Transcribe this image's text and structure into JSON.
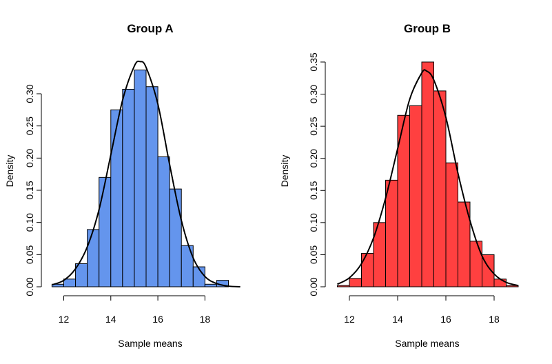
{
  "chart_data": [
    {
      "type": "bar",
      "title": "Group A",
      "xlabel": "Sample means",
      "ylabel": "Density",
      "xlim": [
        11.4,
        19.6
      ],
      "ylim": [
        0,
        0.36
      ],
      "x_ticks": [
        "12",
        "14",
        "16",
        "18"
      ],
      "y_ticks": [
        "0.00",
        "0.05",
        "0.10",
        "0.15",
        "0.20",
        "0.25",
        "0.30"
      ],
      "bin_edges": [
        11.5,
        12.0,
        12.5,
        13.0,
        13.5,
        14.0,
        14.5,
        15.0,
        15.5,
        16.0,
        16.5,
        17.0,
        17.5,
        18.0,
        18.5,
        19.0
      ],
      "values": [
        0.004,
        0.012,
        0.036,
        0.089,
        0.17,
        0.275,
        0.307,
        0.337,
        0.311,
        0.202,
        0.152,
        0.064,
        0.031,
        0.004,
        0.01
      ],
      "bar_color": "#6495ED",
      "curve": {
        "x": [
          11.5,
          12.0,
          12.5,
          13.0,
          13.5,
          14.0,
          14.5,
          15.0,
          15.25,
          15.5,
          16.0,
          16.5,
          17.0,
          17.5,
          18.0,
          18.5,
          19.0,
          19.5
        ],
        "y": [
          0.003,
          0.01,
          0.028,
          0.062,
          0.12,
          0.205,
          0.29,
          0.343,
          0.35,
          0.341,
          0.284,
          0.19,
          0.103,
          0.045,
          0.016,
          0.005,
          0.001,
          0.0
        ]
      }
    },
    {
      "type": "bar",
      "title": "Group B",
      "xlabel": "Sample means",
      "ylabel": "Density",
      "xlim": [
        11.4,
        19.0
      ],
      "ylim": [
        0,
        0.365
      ],
      "x_ticks": [
        "12",
        "14",
        "16",
        "18"
      ],
      "y_ticks": [
        "0.00",
        "0.05",
        "0.10",
        "0.15",
        "0.20",
        "0.25",
        "0.30",
        "0.35"
      ],
      "bin_edges": [
        11.5,
        12.0,
        12.5,
        13.0,
        13.5,
        14.0,
        14.5,
        15.0,
        15.5,
        16.0,
        16.5,
        17.0,
        17.5,
        18.0,
        18.5,
        19.0
      ],
      "values": [
        0.002,
        0.013,
        0.052,
        0.1,
        0.166,
        0.267,
        0.282,
        0.35,
        0.305,
        0.193,
        0.132,
        0.071,
        0.05,
        0.012,
        0.002
      ],
      "bar_color": "#FF4040",
      "curve": {
        "x": [
          11.5,
          12.0,
          12.5,
          13.0,
          13.5,
          14.0,
          14.5,
          15.0,
          15.2,
          15.5,
          16.0,
          16.5,
          17.0,
          17.5,
          18.0,
          18.5,
          19.0
        ],
        "y": [
          0.004,
          0.014,
          0.036,
          0.076,
          0.138,
          0.215,
          0.292,
          0.333,
          0.336,
          0.322,
          0.264,
          0.177,
          0.103,
          0.048,
          0.02,
          0.007,
          0.002
        ]
      }
    }
  ]
}
